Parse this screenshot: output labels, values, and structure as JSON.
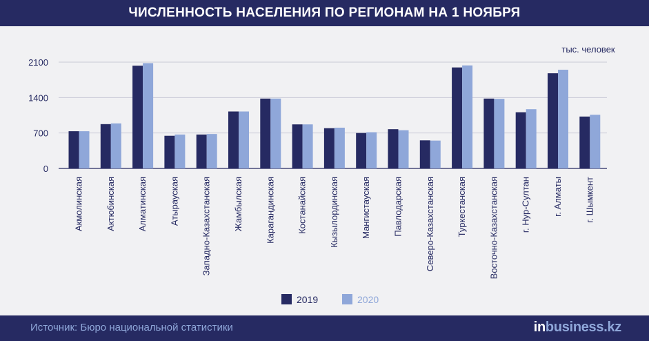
{
  "title": "ЧИСЛЕННОСТЬ НАСЕЛЕНИЯ ПО РЕГИОНАМ НА 1 НОЯБРЯ",
  "source": "Источник: Бюро национальной статистики",
  "brand": {
    "part1": "in",
    "part2": "business.kz"
  },
  "colors": {
    "header_bg": "#262a62",
    "series_2019": "#262a62",
    "series_2020": "#8fa7d9",
    "grid": "#c9cad6"
  },
  "chart_data": {
    "type": "bar",
    "unit_label": "тыс. человек",
    "ylim": [
      0,
      2100
    ],
    "yticks": [
      "0",
      "700",
      "1400",
      "2100"
    ],
    "grid": true,
    "legend_position": "bottom-center",
    "categories": [
      "Акмолинская",
      "Актюбинская",
      "Алматинская",
      "Атырауская",
      "Западно-Казахстанская",
      "Жамбылская",
      "Карагандинская",
      "Костанайская",
      "Кызылординская",
      "Мангистауская",
      "Павлодарская",
      "Северо-Казахстанская",
      "Туркестанская",
      "Восточно-Казахстанская",
      "г. Нур-Султан",
      "г. Алматы",
      "г. Шымкент"
    ],
    "series": [
      {
        "name": "2019",
        "values": [
          735,
          875,
          2030,
          645,
          670,
          1125,
          1380,
          870,
          795,
          700,
          775,
          555,
          1995,
          1380,
          1110,
          1880,
          1025
        ]
      },
      {
        "name": "2020",
        "values": [
          735,
          890,
          2080,
          670,
          680,
          1125,
          1380,
          870,
          805,
          715,
          755,
          550,
          2035,
          1375,
          1170,
          1950,
          1060
        ]
      }
    ]
  }
}
